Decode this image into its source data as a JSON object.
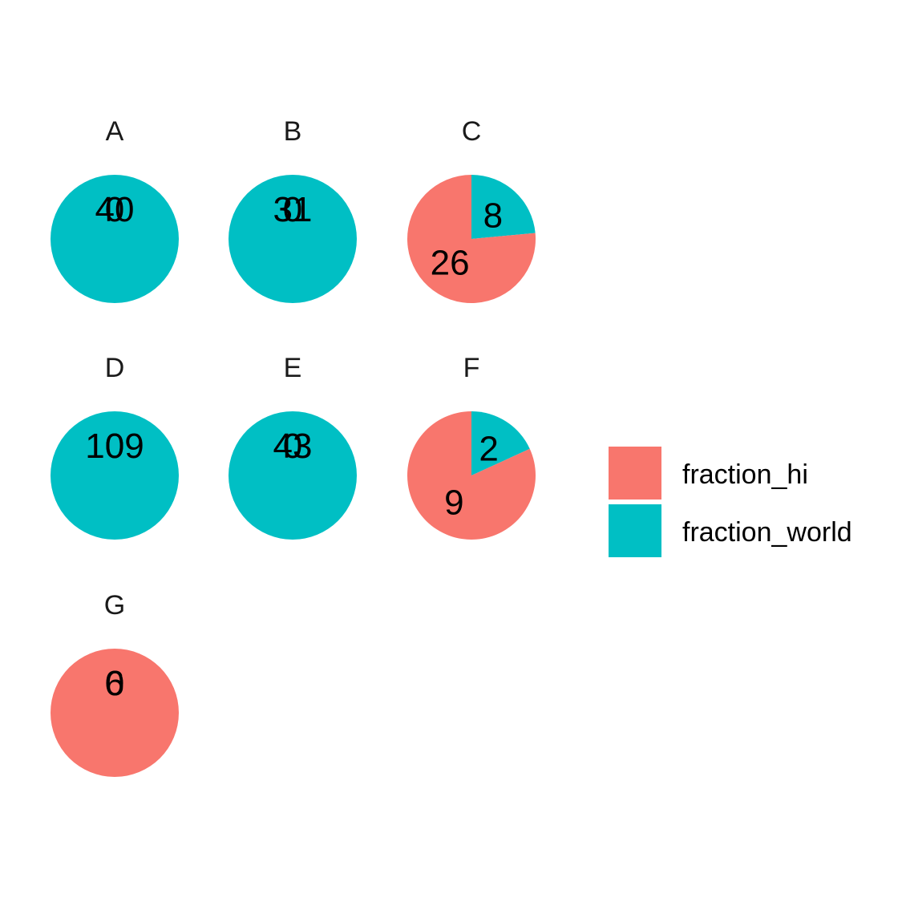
{
  "chart_data": {
    "type": "pie",
    "facet_order": [
      "A",
      "B",
      "C",
      "D",
      "E",
      "F",
      "G"
    ],
    "series_names": [
      "fraction_hi",
      "fraction_world"
    ],
    "colors": {
      "fraction_hi": "#F8766D",
      "fraction_world": "#00BFC4"
    },
    "panels": [
      {
        "label": "A",
        "values": {
          "fraction_hi": 0,
          "fraction_world": 40
        }
      },
      {
        "label": "B",
        "values": {
          "fraction_hi": 0,
          "fraction_world": 31
        }
      },
      {
        "label": "C",
        "values": {
          "fraction_hi": 26,
          "fraction_world": 8
        }
      },
      {
        "label": "D",
        "values": {
          "fraction_hi": 0,
          "fraction_world": 109
        }
      },
      {
        "label": "E",
        "values": {
          "fraction_hi": 0,
          "fraction_world": 43
        }
      },
      {
        "label": "F",
        "values": {
          "fraction_hi": 9,
          "fraction_world": 2
        }
      },
      {
        "label": "G",
        "values": {
          "fraction_hi": 6,
          "fraction_world": 0
        }
      }
    ],
    "legend": {
      "position": "right",
      "entries": [
        "fraction_hi",
        "fraction_world"
      ]
    }
  }
}
